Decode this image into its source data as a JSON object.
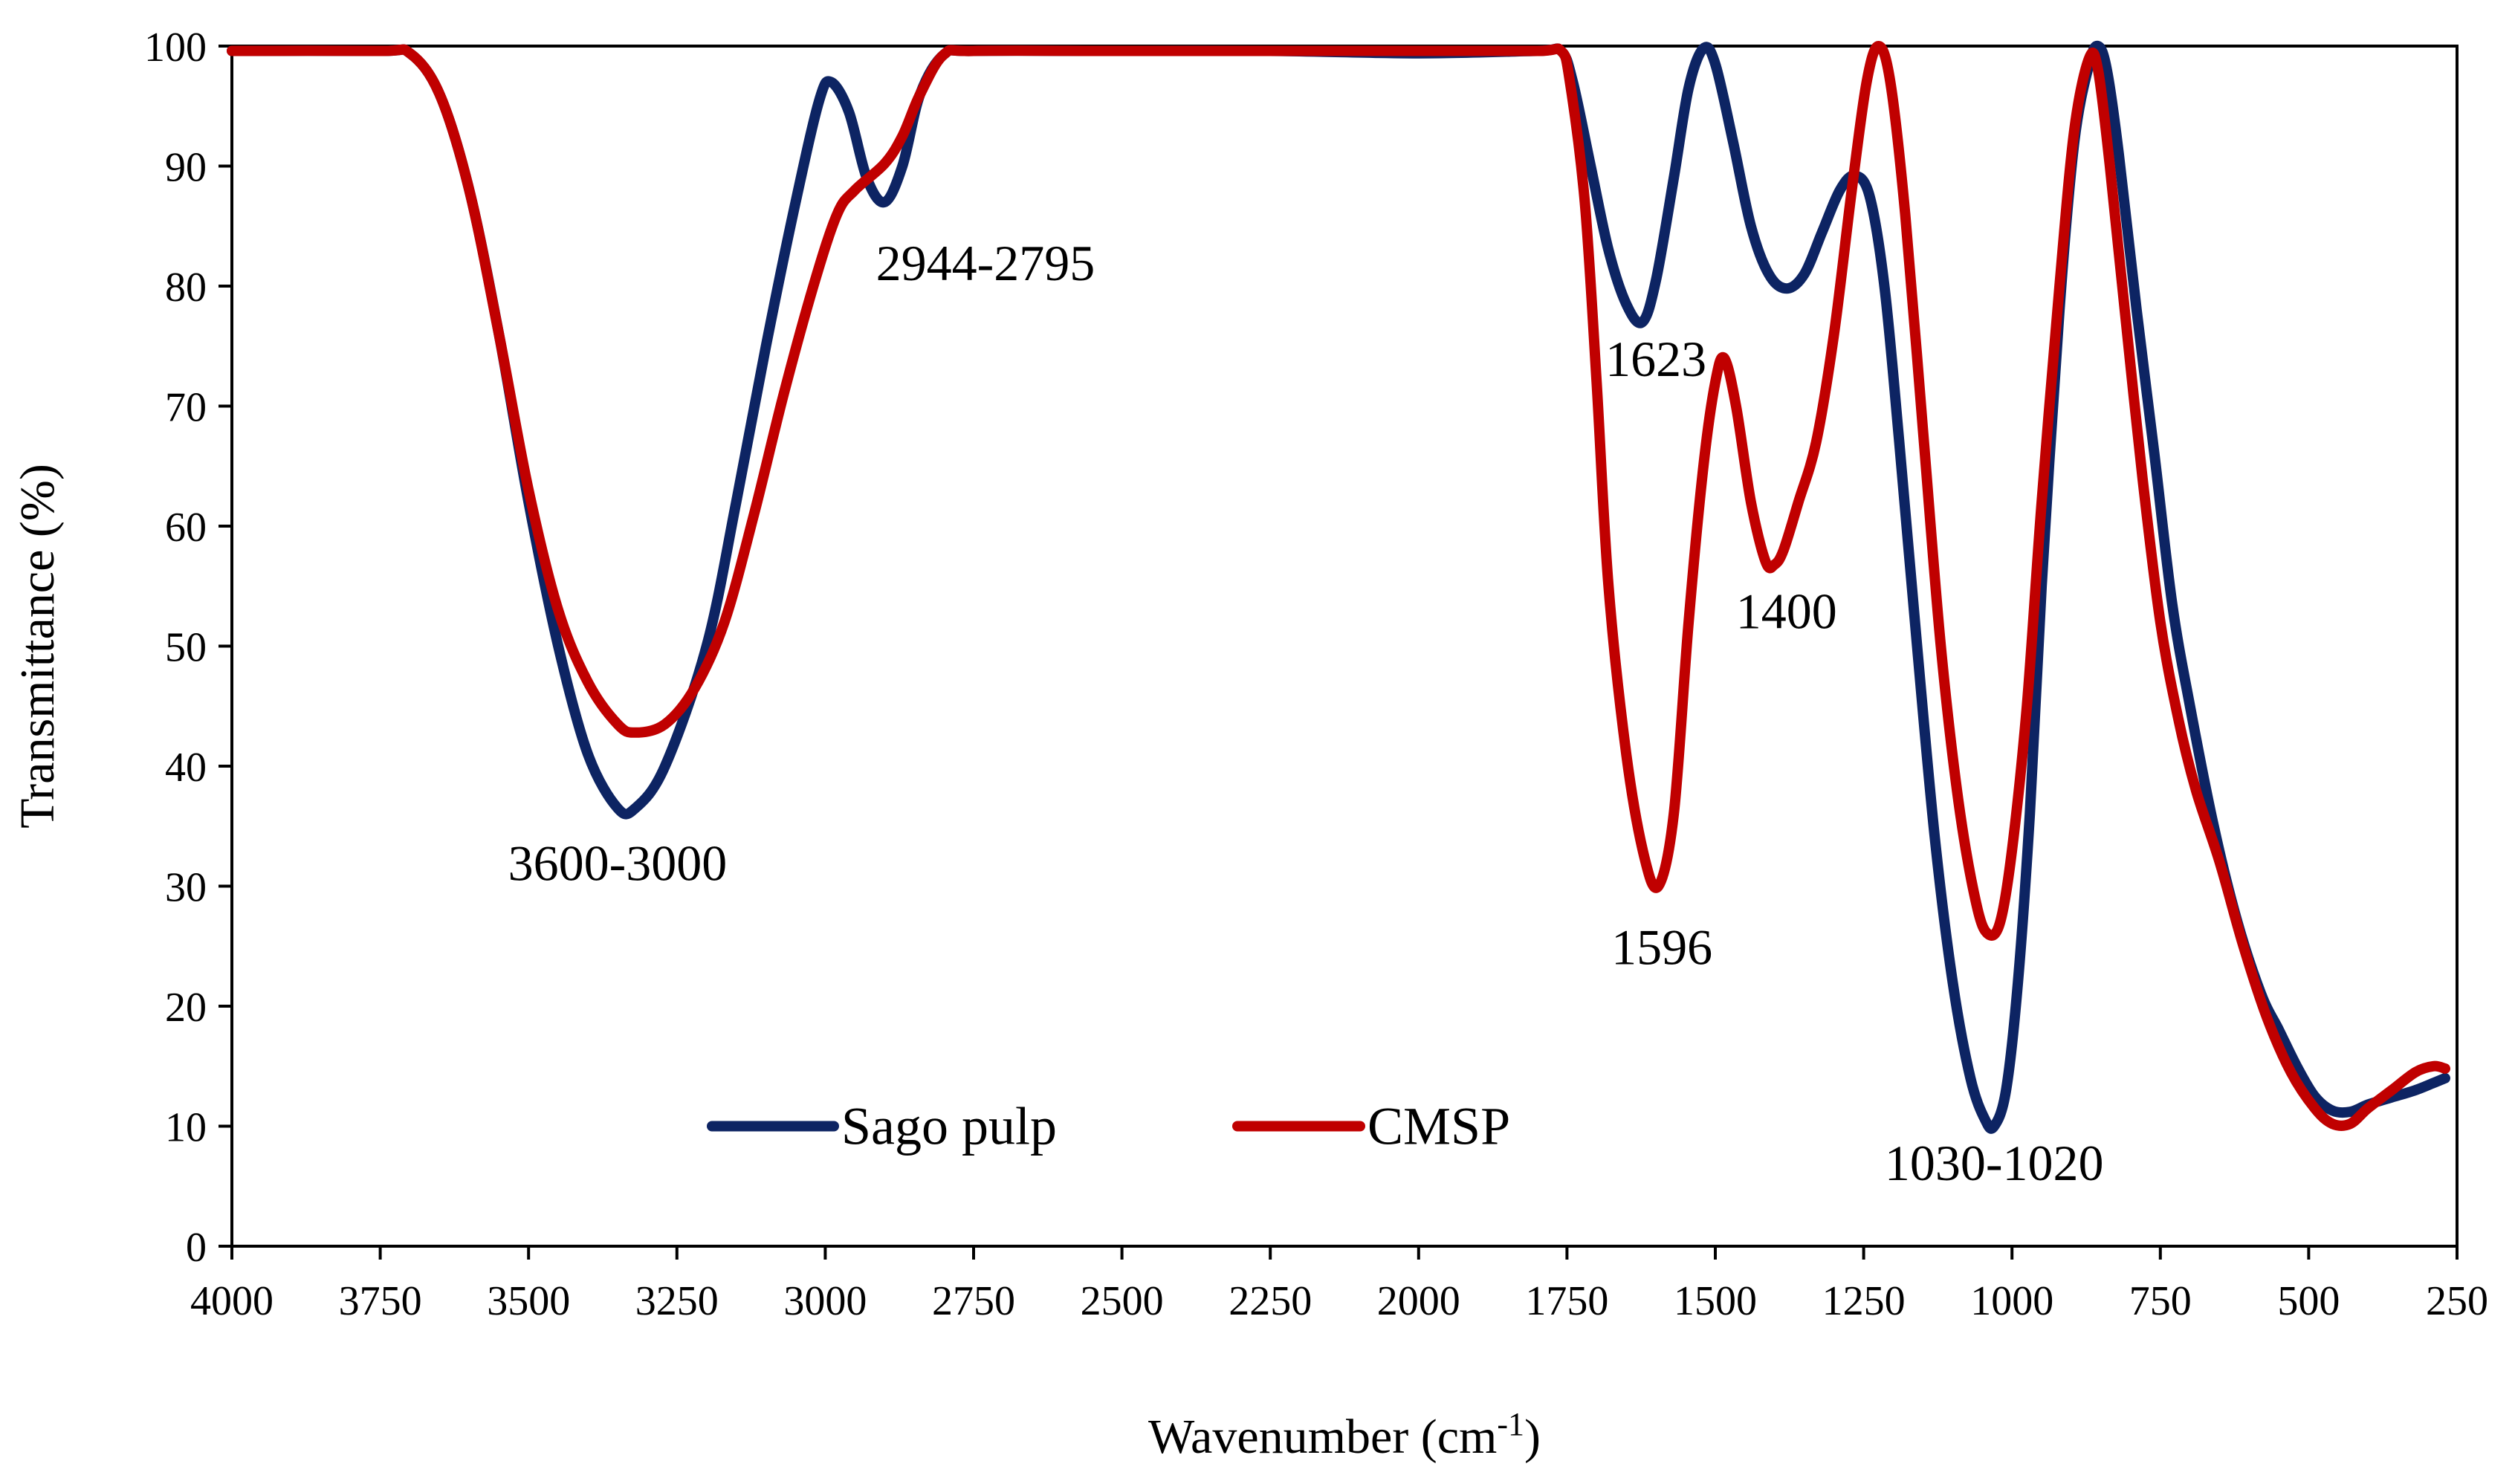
{
  "chart_data": {
    "type": "line",
    "title": "",
    "xlabel": "Wavenumber (cm",
    "xlabel_sup": "-1",
    "xlabel_close": ")",
    "ylabel": "Transmittance (%)",
    "xlim": [
      4000,
      250
    ],
    "x_reversed": true,
    "ylim": [
      0,
      100
    ],
    "xticks": [
      4000,
      3750,
      3500,
      3250,
      3000,
      2750,
      2500,
      2250,
      2000,
      1750,
      1500,
      1250,
      1000,
      750,
      500,
      250
    ],
    "yticks": [
      0,
      10,
      20,
      30,
      40,
      50,
      60,
      70,
      80,
      90,
      100
    ],
    "grid": false,
    "legend_position": "bottom-center",
    "series": [
      {
        "name": "Sago pulp",
        "color": "#0d2463",
        "points": [
          [
            4000,
            99.6
          ],
          [
            3750,
            99.6
          ],
          [
            3700,
            99.4
          ],
          [
            3650,
            96
          ],
          [
            3600,
            88
          ],
          [
            3550,
            76
          ],
          [
            3500,
            62
          ],
          [
            3450,
            50
          ],
          [
            3400,
            41
          ],
          [
            3350,
            36.5
          ],
          [
            3320,
            36.5
          ],
          [
            3270,
            40
          ],
          [
            3200,
            50
          ],
          [
            3150,
            62
          ],
          [
            3100,
            75
          ],
          [
            3050,
            87
          ],
          [
            3010,
            95.5
          ],
          [
            2990,
            97
          ],
          [
            2960,
            94.5
          ],
          [
            2930,
            89
          ],
          [
            2900,
            87
          ],
          [
            2870,
            90
          ],
          [
            2840,
            96
          ],
          [
            2800,
            99.3
          ],
          [
            2750,
            99.6
          ],
          [
            2500,
            99.6
          ],
          [
            2250,
            99.6
          ],
          [
            2000,
            99.4
          ],
          [
            1800,
            99.6
          ],
          [
            1760,
            99.6
          ],
          [
            1740,
            97
          ],
          [
            1710,
            90
          ],
          [
            1680,
            83
          ],
          [
            1650,
            78.5
          ],
          [
            1623,
            77
          ],
          [
            1600,
            80.5
          ],
          [
            1570,
            89
          ],
          [
            1545,
            96.5
          ],
          [
            1520,
            99.8
          ],
          [
            1500,
            98.5
          ],
          [
            1470,
            92
          ],
          [
            1440,
            85
          ],
          [
            1410,
            81
          ],
          [
            1380,
            79.8
          ],
          [
            1350,
            81
          ],
          [
            1320,
            84.5
          ],
          [
            1290,
            88
          ],
          [
            1265,
            89.2
          ],
          [
            1240,
            87.5
          ],
          [
            1215,
            80
          ],
          [
            1190,
            67
          ],
          [
            1160,
            50
          ],
          [
            1130,
            34
          ],
          [
            1100,
            22
          ],
          [
            1070,
            14
          ],
          [
            1045,
            10.5
          ],
          [
            1030,
            10
          ],
          [
            1010,
            13
          ],
          [
            990,
            22
          ],
          [
            970,
            36
          ],
          [
            950,
            55
          ],
          [
            920,
            78
          ],
          [
            895,
            92
          ],
          [
            870,
            98.5
          ],
          [
            855,
            100
          ],
          [
            840,
            98
          ],
          [
            820,
            91
          ],
          [
            790,
            78
          ],
          [
            760,
            66
          ],
          [
            730,
            53.5
          ],
          [
            700,
            45
          ],
          [
            660,
            35
          ],
          [
            620,
            27
          ],
          [
            580,
            21
          ],
          [
            550,
            18
          ],
          [
            520,
            15
          ],
          [
            490,
            12.5
          ],
          [
            460,
            11.3
          ],
          [
            430,
            11.2
          ],
          [
            400,
            11.8
          ],
          [
            360,
            12.4
          ],
          [
            320,
            13
          ],
          [
            290,
            13.6
          ],
          [
            270,
            14
          ]
        ]
      },
      {
        "name": "CMSP",
        "color": "#c00000",
        "points": [
          [
            4000,
            99.6
          ],
          [
            3750,
            99.6
          ],
          [
            3700,
            99.4
          ],
          [
            3650,
            96
          ],
          [
            3600,
            88
          ],
          [
            3550,
            76
          ],
          [
            3500,
            63
          ],
          [
            3450,
            53
          ],
          [
            3400,
            47
          ],
          [
            3350,
            43.5
          ],
          [
            3320,
            42.8
          ],
          [
            3270,
            43.5
          ],
          [
            3220,
            46.5
          ],
          [
            3170,
            52
          ],
          [
            3120,
            61
          ],
          [
            3070,
            71
          ],
          [
            3020,
            80
          ],
          [
            2980,
            86
          ],
          [
            2950,
            88
          ],
          [
            2900,
            90.2
          ],
          [
            2870,
            92.5
          ],
          [
            2840,
            96
          ],
          [
            2800,
            99.3
          ],
          [
            2750,
            99.6
          ],
          [
            2500,
            99.6
          ],
          [
            2250,
            99.6
          ],
          [
            2000,
            99.6
          ],
          [
            1800,
            99.6
          ],
          [
            1760,
            99.6
          ],
          [
            1745,
            97
          ],
          [
            1720,
            87
          ],
          [
            1700,
            72
          ],
          [
            1680,
            55
          ],
          [
            1650,
            41
          ],
          [
            1620,
            32.5
          ],
          [
            1596,
            30
          ],
          [
            1570,
            36
          ],
          [
            1545,
            52
          ],
          [
            1520,
            65
          ],
          [
            1500,
            72
          ],
          [
            1485,
            74
          ],
          [
            1465,
            70
          ],
          [
            1440,
            62
          ],
          [
            1415,
            57
          ],
          [
            1400,
            56.8
          ],
          [
            1385,
            58
          ],
          [
            1360,
            62
          ],
          [
            1330,
            67
          ],
          [
            1300,
            76
          ],
          [
            1270,
            88
          ],
          [
            1245,
            97
          ],
          [
            1225,
            100
          ],
          [
            1205,
            97
          ],
          [
            1180,
            86
          ],
          [
            1150,
            68
          ],
          [
            1120,
            50
          ],
          [
            1090,
            37
          ],
          [
            1060,
            28.5
          ],
          [
            1040,
            26
          ],
          [
            1020,
            27
          ],
          [
            1000,
            33
          ],
          [
            975,
            45
          ],
          [
            950,
            62
          ],
          [
            920,
            80
          ],
          [
            895,
            93
          ],
          [
            870,
            99
          ],
          [
            855,
            98
          ],
          [
            835,
            90
          ],
          [
            810,
            78
          ],
          [
            780,
            64
          ],
          [
            750,
            52
          ],
          [
            720,
            44
          ],
          [
            690,
            38
          ],
          [
            650,
            32
          ],
          [
            610,
            25
          ],
          [
            570,
            19
          ],
          [
            530,
            14.5
          ],
          [
            490,
            11.5
          ],
          [
            460,
            10.2
          ],
          [
            430,
            10.2
          ],
          [
            400,
            11.5
          ],
          [
            360,
            13
          ],
          [
            320,
            14.5
          ],
          [
            290,
            15
          ],
          [
            270,
            14.8
          ]
        ]
      }
    ],
    "annotations": [
      {
        "text": "3600-3000",
        "x": 3350,
        "y": 30.5
      },
      {
        "text": "2944-2795",
        "x": 2730,
        "y": 80.5
      },
      {
        "text": "1623",
        "x": 1600,
        "y": 72.5
      },
      {
        "text": "1400",
        "x": 1380,
        "y": 51.5
      },
      {
        "text": "1596",
        "x": 1590,
        "y": 23.5
      },
      {
        "text": "1030-1020",
        "x": 1030,
        "y": 5.5
      }
    ]
  },
  "legend": {
    "items": [
      {
        "label": "Sago pulp",
        "color": "#0d2463"
      },
      {
        "label": "CMSP",
        "color": "#c00000"
      }
    ]
  }
}
